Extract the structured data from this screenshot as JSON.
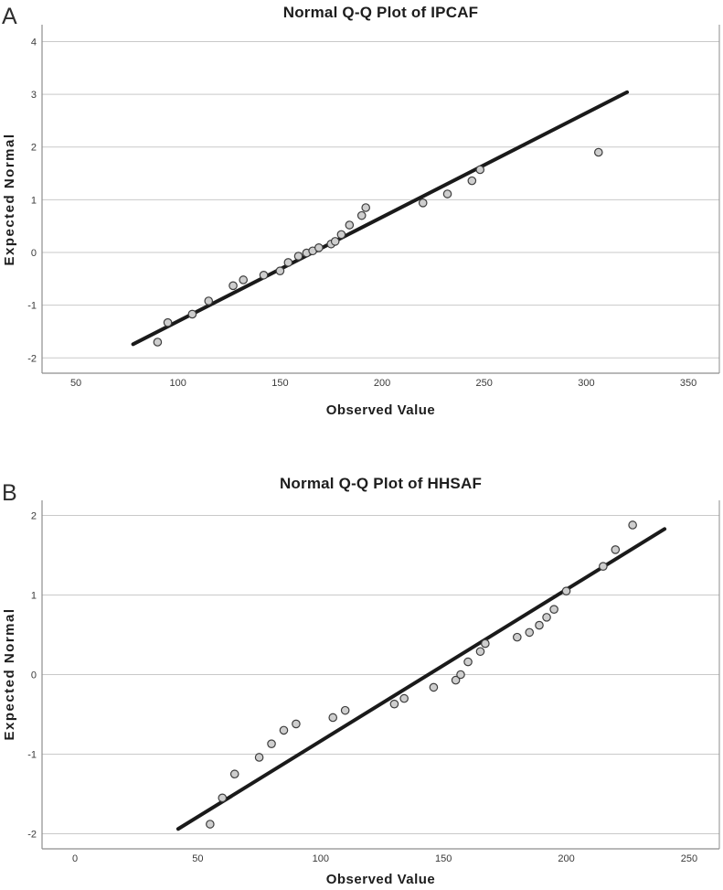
{
  "figure": {
    "background": "#ffffff",
    "panels": [
      {
        "panel_label": "A",
        "title": "Normal Q-Q Plot of IPCAF",
        "xlabel": "Observed Value",
        "ylabel": "Expected Normal"
      },
      {
        "panel_label": "B",
        "title": "Normal Q-Q Plot of HHSAF",
        "xlabel": "Observed Value",
        "ylabel": "Expected Normal"
      }
    ]
  },
  "chart_data": [
    {
      "type": "scatter",
      "title": "Normal Q-Q Plot of IPCAF",
      "xlabel": "Observed Value",
      "ylabel": "Expected Normal",
      "xlim": [
        33.4,
        365.2
      ],
      "ylim": [
        -2.29,
        4.32
      ],
      "xticks": [
        50,
        100,
        150,
        200,
        250,
        300,
        350
      ],
      "yticks": [
        -2,
        -1,
        0,
        1,
        2,
        3,
        4
      ],
      "grid": "horizontal",
      "legend": "none",
      "points": [
        [
          90,
          -1.7
        ],
        [
          95,
          -1.33
        ],
        [
          107,
          -1.17
        ],
        [
          115,
          -0.92
        ],
        [
          127,
          -0.63
        ],
        [
          132,
          -0.52
        ],
        [
          142,
          -0.43
        ],
        [
          150,
          -0.35
        ],
        [
          154,
          -0.19
        ],
        [
          159,
          -0.07
        ],
        [
          163,
          -0.01
        ],
        [
          166,
          0.03
        ],
        [
          169,
          0.09
        ],
        [
          175,
          0.16
        ],
        [
          177,
          0.21
        ],
        [
          180,
          0.34
        ],
        [
          184,
          0.52
        ],
        [
          190,
          0.7
        ],
        [
          192,
          0.85
        ],
        [
          220,
          0.94
        ],
        [
          232,
          1.11
        ],
        [
          244,
          1.36
        ],
        [
          248,
          1.57
        ],
        [
          306,
          1.9
        ]
      ],
      "reference_line": {
        "x1": 78,
        "y1": -1.74,
        "x2": 320,
        "y2": 3.04
      },
      "style": {
        "point_fill": "#cecece",
        "point_stroke": "#3d3d3d",
        "line_color": "#1a1a1a",
        "grid_color": "#c9c9c9",
        "axis_color": "#8e8e8e",
        "tick_text_color": "#3a3a3a"
      }
    },
    {
      "type": "scatter",
      "title": "Normal Q-Q Plot of HHSAF",
      "xlabel": "Observed Value",
      "ylabel": "Expected Normal",
      "xlim": [
        -13.4,
        262.3
      ],
      "ylim": [
        -2.19,
        2.19
      ],
      "xticks": [
        0,
        50,
        100,
        150,
        200,
        250
      ],
      "yticks": [
        -2,
        -1,
        0,
        1,
        2
      ],
      "grid": "horizontal",
      "legend": "none",
      "points": [
        [
          55,
          -1.88
        ],
        [
          60,
          -1.55
        ],
        [
          65,
          -1.25
        ],
        [
          75,
          -1.04
        ],
        [
          80,
          -0.87
        ],
        [
          85,
          -0.7
        ],
        [
          90,
          -0.62
        ],
        [
          105,
          -0.54
        ],
        [
          110,
          -0.45
        ],
        [
          130,
          -0.37
        ],
        [
          134,
          -0.3
        ],
        [
          146,
          -0.16
        ],
        [
          155,
          -0.07
        ],
        [
          157,
          0.0
        ],
        [
          160,
          0.16
        ],
        [
          165,
          0.29
        ],
        [
          167,
          0.39
        ],
        [
          180,
          0.47
        ],
        [
          185,
          0.53
        ],
        [
          189,
          0.62
        ],
        [
          192,
          0.72
        ],
        [
          195,
          0.82
        ],
        [
          200,
          1.05
        ],
        [
          215,
          1.36
        ],
        [
          220,
          1.57
        ],
        [
          227,
          1.88
        ]
      ],
      "reference_line": {
        "x1": 42,
        "y1": -1.94,
        "x2": 240,
        "y2": 1.83
      },
      "style": {
        "point_fill": "#cecece",
        "point_stroke": "#3d3d3d",
        "line_color": "#1a1a1a",
        "grid_color": "#c9c9c9",
        "axis_color": "#8e8e8e",
        "tick_text_color": "#3a3a3a"
      }
    }
  ]
}
